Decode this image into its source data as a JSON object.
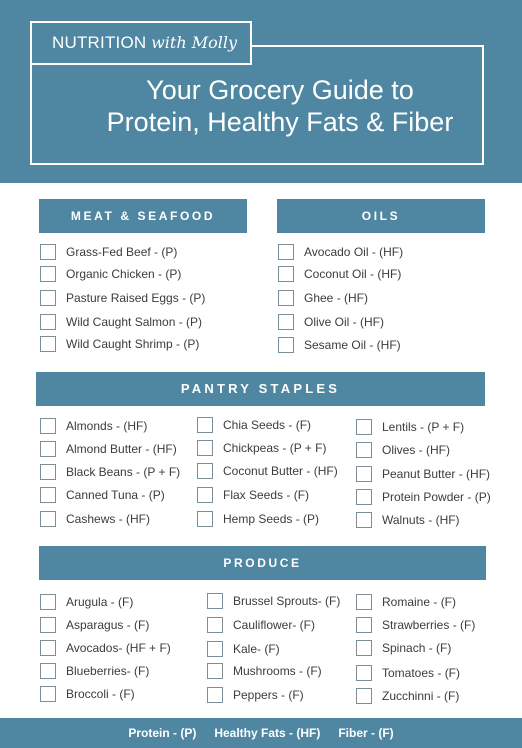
{
  "brand": {
    "bold": "NUTRITION",
    "italic": "with Molly"
  },
  "title": {
    "line1": "Your Grocery Guide to",
    "line2": "Protein, Healthy Fats & Fiber"
  },
  "sections": {
    "meat": {
      "title": "MEAT & SEAFOOD",
      "items": [
        "Grass-Fed Beef - (P)",
        "Organic Chicken - (P)",
        "Pasture Raised Eggs - (P)",
        "Wild Caught Salmon - (P)",
        "Wild Caught Shrimp - (P)"
      ]
    },
    "oils": {
      "title": "OILS",
      "items": [
        "Avocado Oil - (HF)",
        "Coconut Oil - (HF)",
        "Ghee - (HF)",
        "Olive Oil - (HF)",
        "Sesame Oil - (HF)"
      ]
    },
    "pantry": {
      "title": "PANTRY STAPLES",
      "col1": [
        "Almonds - (HF)",
        "Almond Butter - (HF)",
        "Black Beans - (P + F)",
        "Canned Tuna - (P)",
        "Cashews - (HF)"
      ],
      "col2": [
        "Chia Seeds - (F)",
        "Chickpeas - (P + F)",
        "Coconut Butter - (HF)",
        "Flax Seeds - (F)",
        "Hemp Seeds - (P)"
      ],
      "col3": [
        "Lentils - (P + F)",
        "Olives - (HF)",
        "Peanut Butter - (HF)",
        "Protein Powder - (P)",
        "Walnuts - (HF)"
      ]
    },
    "produce": {
      "title": "PRODUCE",
      "col1": [
        "Arugula - (F)",
        "Asparagus - (F)",
        "Avocados- (HF + F)",
        "Blueberries- (F)",
        "Broccoli - (F)"
      ],
      "col2": [
        "Brussel Sprouts- (F)",
        "Cauliflower- (F)",
        "Kale- (F)",
        "Mushrooms - (F)",
        "Peppers - (F)"
      ],
      "col3": [
        "Romaine - (F)",
        "Strawberries - (F)",
        "Spinach - (F)",
        "Tomatoes - (F)",
        "Zucchinni - (F)"
      ]
    }
  },
  "legend": {
    "protein": "Protein - (P)",
    "fats": "Healthy Fats - (HF)",
    "fiber": "Fiber - (F)"
  },
  "colors": {
    "accent": "#4f86a1",
    "text": "#3c3c3c",
    "background": "#ffffff"
  }
}
